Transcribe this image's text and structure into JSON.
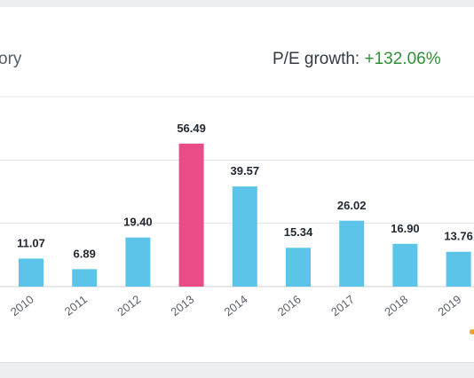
{
  "header": {
    "title_fragment": "ory",
    "growth_label": "P/E growth:",
    "growth_value": "+132.06%"
  },
  "colors": {
    "bar": "#5bc4e8",
    "highlight": "#e94c86",
    "grid": "#e2e4e8",
    "growth_positive": "#2f8f36"
  },
  "chart_data": {
    "type": "bar",
    "categories": [
      "2010",
      "2011",
      "2012",
      "2013",
      "2014",
      "2016",
      "2017",
      "2018",
      "2019"
    ],
    "values": [
      11.07,
      6.89,
      19.4,
      56.49,
      39.57,
      15.34,
      26.02,
      16.9,
      13.76
    ],
    "value_labels": [
      "11.07",
      "6.89",
      "19.40",
      "56.49",
      "39.57",
      "15.34",
      "26.02",
      "16.90",
      "13.76"
    ],
    "highlight_category": "2013",
    "title": "",
    "xlabel": "",
    "ylabel": "",
    "ylim": [
      0,
      75
    ],
    "grid": true,
    "legend": "none"
  }
}
